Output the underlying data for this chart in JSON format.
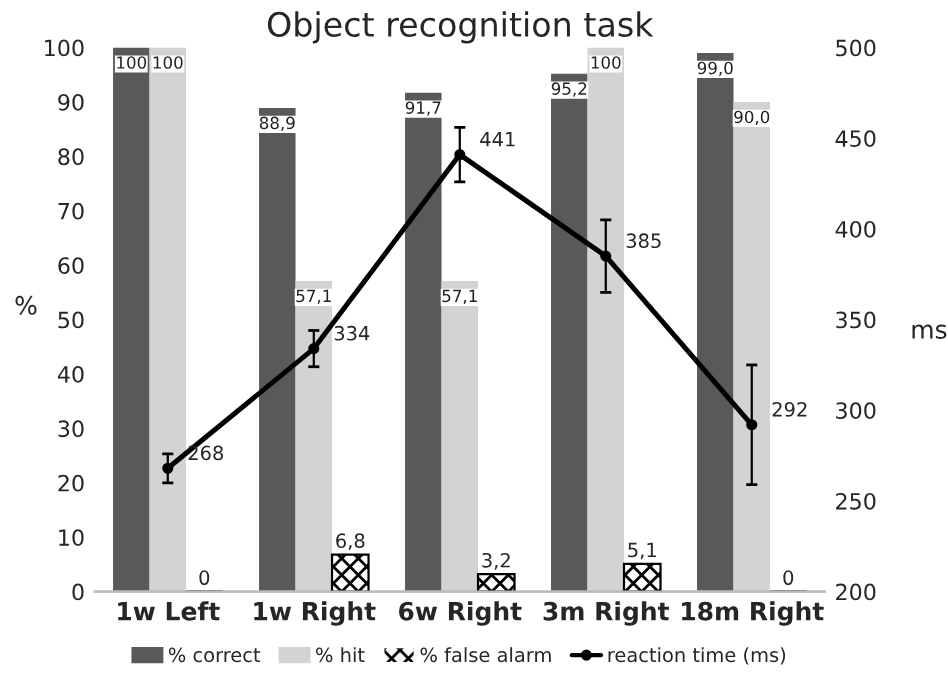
{
  "chart_data": {
    "type": "bar",
    "title": "Object recognition task",
    "ylabel": "%",
    "y2label": "ms",
    "categories": [
      "1w Left",
      "1w Right",
      "6w Right",
      "3m Right",
      "18m Right"
    ],
    "series": [
      {
        "name": "% correct",
        "color": "#595959",
        "values": [
          100,
          88.9,
          91.7,
          95.2,
          99.0
        ],
        "value_labels": [
          "100",
          "88,9",
          "91,7",
          "95,2",
          "99,0"
        ]
      },
      {
        "name": "% hit",
        "color": "#d3d3d3",
        "values": [
          100,
          57.1,
          57.1,
          100,
          90.0
        ],
        "value_labels": [
          "100",
          "57,1",
          "57,1",
          "100",
          "90,0"
        ]
      },
      {
        "name": "% false alarm",
        "color": "#000000",
        "values": [
          0,
          6.8,
          3.2,
          5.1,
          0
        ],
        "value_labels": [
          "0",
          "6,8",
          "3,2",
          "5,1",
          "0"
        ]
      },
      {
        "name": "reaction time (ms)",
        "type": "line",
        "axis": "y2",
        "color": "#000000",
        "values": [
          268,
          334,
          441,
          385,
          292
        ],
        "errors": [
          8,
          10,
          15,
          20,
          33
        ],
        "value_labels": [
          "268",
          "334",
          "441",
          "385",
          "292"
        ]
      }
    ],
    "ylim": [
      0,
      100
    ],
    "yticks": [
      0,
      10,
      20,
      30,
      40,
      50,
      60,
      70,
      80,
      90,
      100
    ],
    "y2lim": [
      200,
      500
    ],
    "y2ticks": [
      200,
      250,
      300,
      350,
      400,
      450,
      500
    ],
    "grid": false,
    "legend": "bottom",
    "marker": "circle",
    "line_style": "solid"
  }
}
